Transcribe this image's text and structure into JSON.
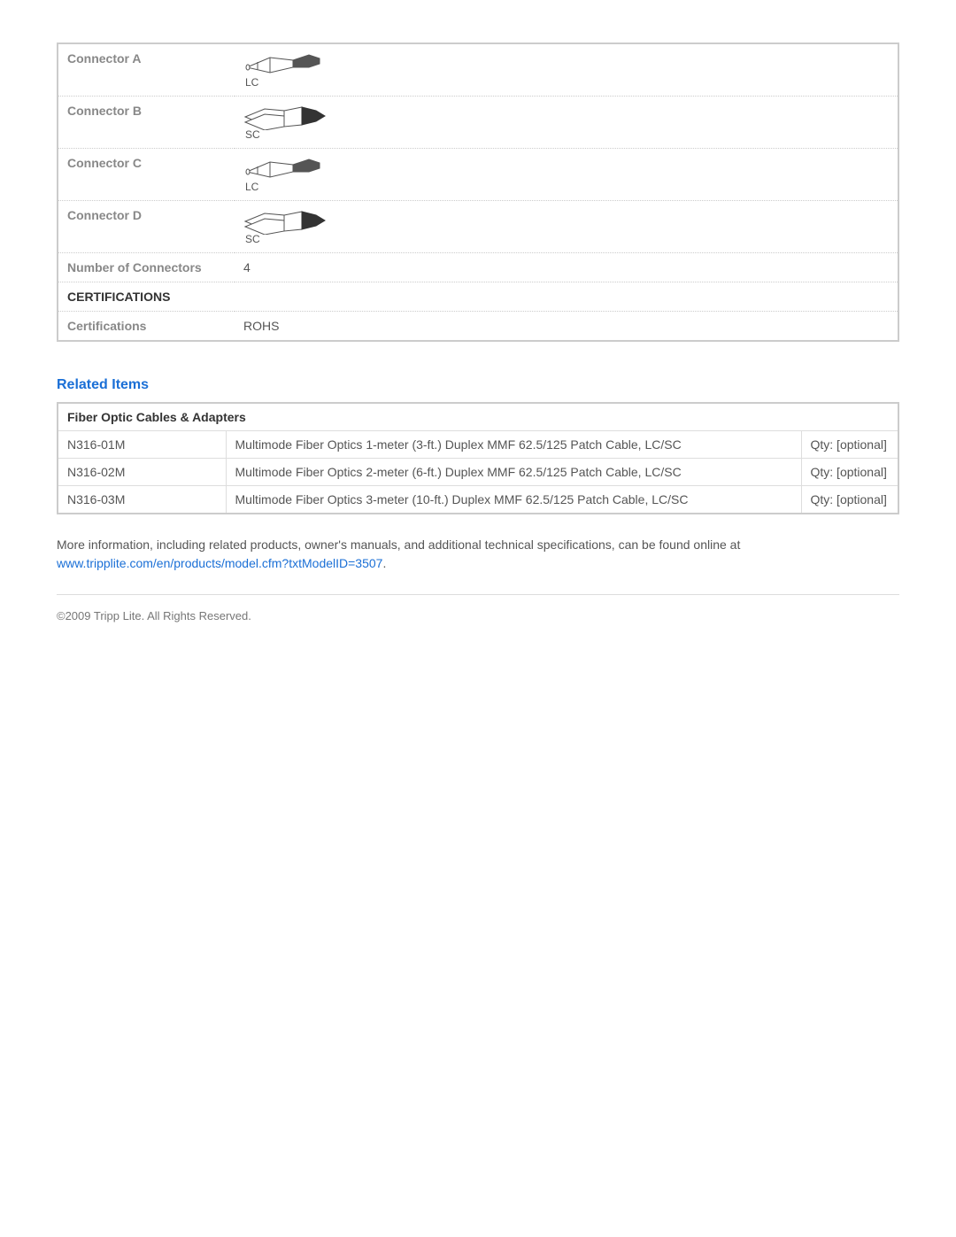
{
  "specs": {
    "rows": [
      {
        "label": "Connector A",
        "connector": "LC"
      },
      {
        "label": "Connector B",
        "connector": "SC"
      },
      {
        "label": "Connector C",
        "connector": "LC"
      },
      {
        "label": "Connector D",
        "connector": "SC"
      }
    ],
    "num_connectors_label": "Number of Connectors",
    "num_connectors_value": "4",
    "cert_section_header": "CERTIFICATIONS",
    "cert_label": "Certifications",
    "cert_value": "ROHS"
  },
  "related": {
    "heading": "Related Items",
    "section_header": "Fiber Optic Cables & Adapters",
    "qty_label": "Qty: [optional]",
    "items": [
      {
        "sku": "N316-01M",
        "desc": "Multimode Fiber Optics 1-meter (3-ft.) Duplex MMF 62.5/125 Patch Cable, LC/SC"
      },
      {
        "sku": "N316-02M",
        "desc": "Multimode Fiber Optics 2-meter (6-ft.) Duplex MMF 62.5/125 Patch Cable, LC/SC"
      },
      {
        "sku": "N316-03M",
        "desc": "Multimode Fiber Optics 3-meter (10-ft.) Duplex MMF 62.5/125 Patch Cable, LC/SC"
      }
    ]
  },
  "more_info": {
    "text": "More information, including related products, owner's manuals, and additional technical specifications, can be found online at ",
    "link_text": "www.tripplite.com/en/products/model.cfm?txtModelID=3507",
    "suffix": "."
  },
  "copyright": "©2009 Tripp Lite.  All Rights Reserved.",
  "style": {
    "link_color": "#1a6fd6",
    "border_color": "#cccccc",
    "label_color": "#888888",
    "value_color": "#555555"
  }
}
